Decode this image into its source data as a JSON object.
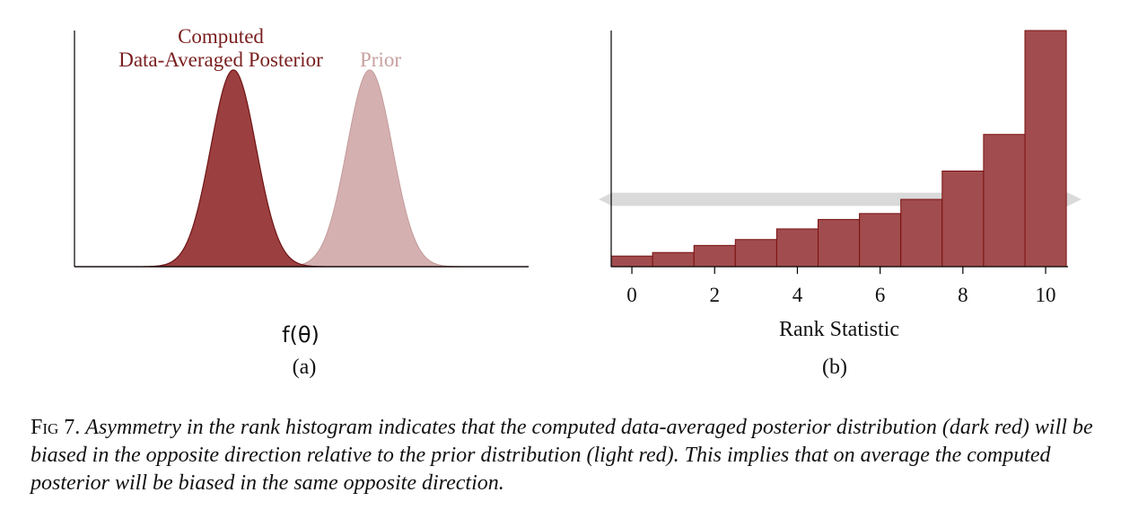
{
  "colors": {
    "posterior": "#9c3f40",
    "posterior_stroke": "#6e1616",
    "prior": "#d5b0b0",
    "prior_stroke": "#c49b9b",
    "bar_fill": "#a14c4e",
    "bar_stroke": "#7a1010",
    "band": "#dadada",
    "posterior_label": "#7a1e1e",
    "prior_label": "#c9a0a0"
  },
  "panel_a": {
    "xlabel": "f(θ)",
    "sublabel": "(a)",
    "legend": {
      "posterior_line1": "Computed",
      "posterior_line2": "Data-Averaged Posterior",
      "prior": "Prior"
    }
  },
  "panel_b": {
    "xlabel": "Rank Statistic",
    "sublabel": "(b)"
  },
  "caption": {
    "fig_label": "Fig 7.",
    "text": "Asymmetry in the rank histogram indicates that the computed data-averaged posterior distribution (dark red) will be biased in the opposite direction relative to the prior distribution (light red). This implies that on average the computed posterior will be biased in the same opposite direction."
  },
  "chart_data": [
    {
      "type": "area",
      "xlabel": "f(θ)",
      "series": [
        {
          "name": "Computed Data-Averaged Posterior",
          "kind": "gaussian",
          "mean": 0.35,
          "sd": 0.05,
          "peak": 1.0
        },
        {
          "name": "Prior",
          "kind": "gaussian",
          "mean": 0.65,
          "sd": 0.05,
          "peak": 1.0
        }
      ],
      "xlim": [
        0,
        1
      ],
      "ylim": [
        0,
        1.2
      ],
      "grid": false
    },
    {
      "type": "bar",
      "xlabel": "Rank Statistic",
      "categories": [
        0,
        1,
        2,
        3,
        4,
        5,
        6,
        7,
        8,
        9,
        10
      ],
      "x_ticks": [
        0,
        2,
        4,
        6,
        8,
        10
      ],
      "values": [
        0.045,
        0.06,
        0.09,
        0.115,
        0.16,
        0.2,
        0.225,
        0.285,
        0.405,
        0.56,
        1.0
      ],
      "reference_band": {
        "center": 0.285,
        "half_width": 0.028
      },
      "ylim": [
        0,
        1.0
      ],
      "grid": false
    }
  ]
}
